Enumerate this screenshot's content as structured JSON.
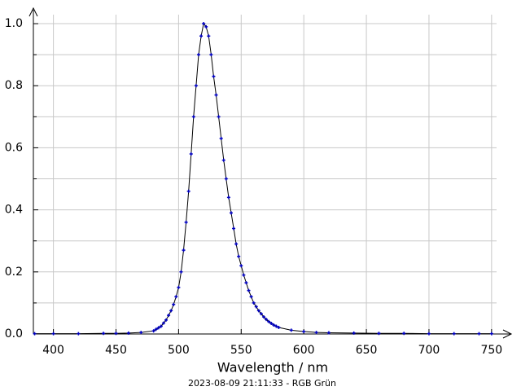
{
  "chart_data": {
    "type": "line",
    "xlabel": "Wavelength / nm",
    "footer": "2023-08-09 21:11:33 - RGB Grün",
    "x": [
      385,
      400,
      420,
      440,
      450,
      460,
      470,
      480,
      482,
      484,
      486,
      488,
      490,
      492,
      494,
      496,
      498,
      500,
      502,
      504,
      506,
      508,
      510,
      512,
      514,
      516,
      518,
      520,
      522,
      524,
      526,
      528,
      530,
      532,
      534,
      536,
      538,
      540,
      542,
      544,
      546,
      548,
      550,
      552,
      554,
      556,
      558,
      560,
      562,
      564,
      566,
      568,
      570,
      572,
      574,
      576,
      578,
      580,
      590,
      600,
      610,
      620,
      640,
      660,
      680,
      700,
      720,
      740,
      750
    ],
    "series": [
      {
        "color": "#0000c0",
        "line_color": "#000000",
        "values": [
          0.001,
          0.001,
          0.001,
          0.002,
          0.002,
          0.003,
          0.005,
          0.01,
          0.015,
          0.02,
          0.025,
          0.035,
          0.045,
          0.06,
          0.075,
          0.095,
          0.12,
          0.15,
          0.2,
          0.27,
          0.36,
          0.46,
          0.58,
          0.7,
          0.8,
          0.9,
          0.96,
          1.0,
          0.99,
          0.96,
          0.9,
          0.83,
          0.77,
          0.7,
          0.63,
          0.56,
          0.5,
          0.44,
          0.39,
          0.34,
          0.29,
          0.25,
          0.22,
          0.19,
          0.165,
          0.14,
          0.12,
          0.1,
          0.088,
          0.075,
          0.065,
          0.055,
          0.047,
          0.04,
          0.034,
          0.029,
          0.025,
          0.021,
          0.012,
          0.008,
          0.005,
          0.004,
          0.003,
          0.002,
          0.002,
          0.001,
          0.001,
          0.001,
          0.001
        ]
      }
    ],
    "xlim": [
      384,
      754
    ],
    "ylim": [
      0,
      1.05
    ],
    "xticks": [
      400,
      450,
      500,
      550,
      600,
      650,
      700,
      750
    ],
    "yticks": [
      {
        "value": 0,
        "label": "0.0"
      },
      0.2,
      0.4,
      0.6,
      0.8,
      {
        "value": 1,
        "label": "1.0"
      }
    ],
    "yminorticks": [
      0.1,
      0.3,
      0.5,
      0.7,
      0.9
    ],
    "grid": true
  }
}
